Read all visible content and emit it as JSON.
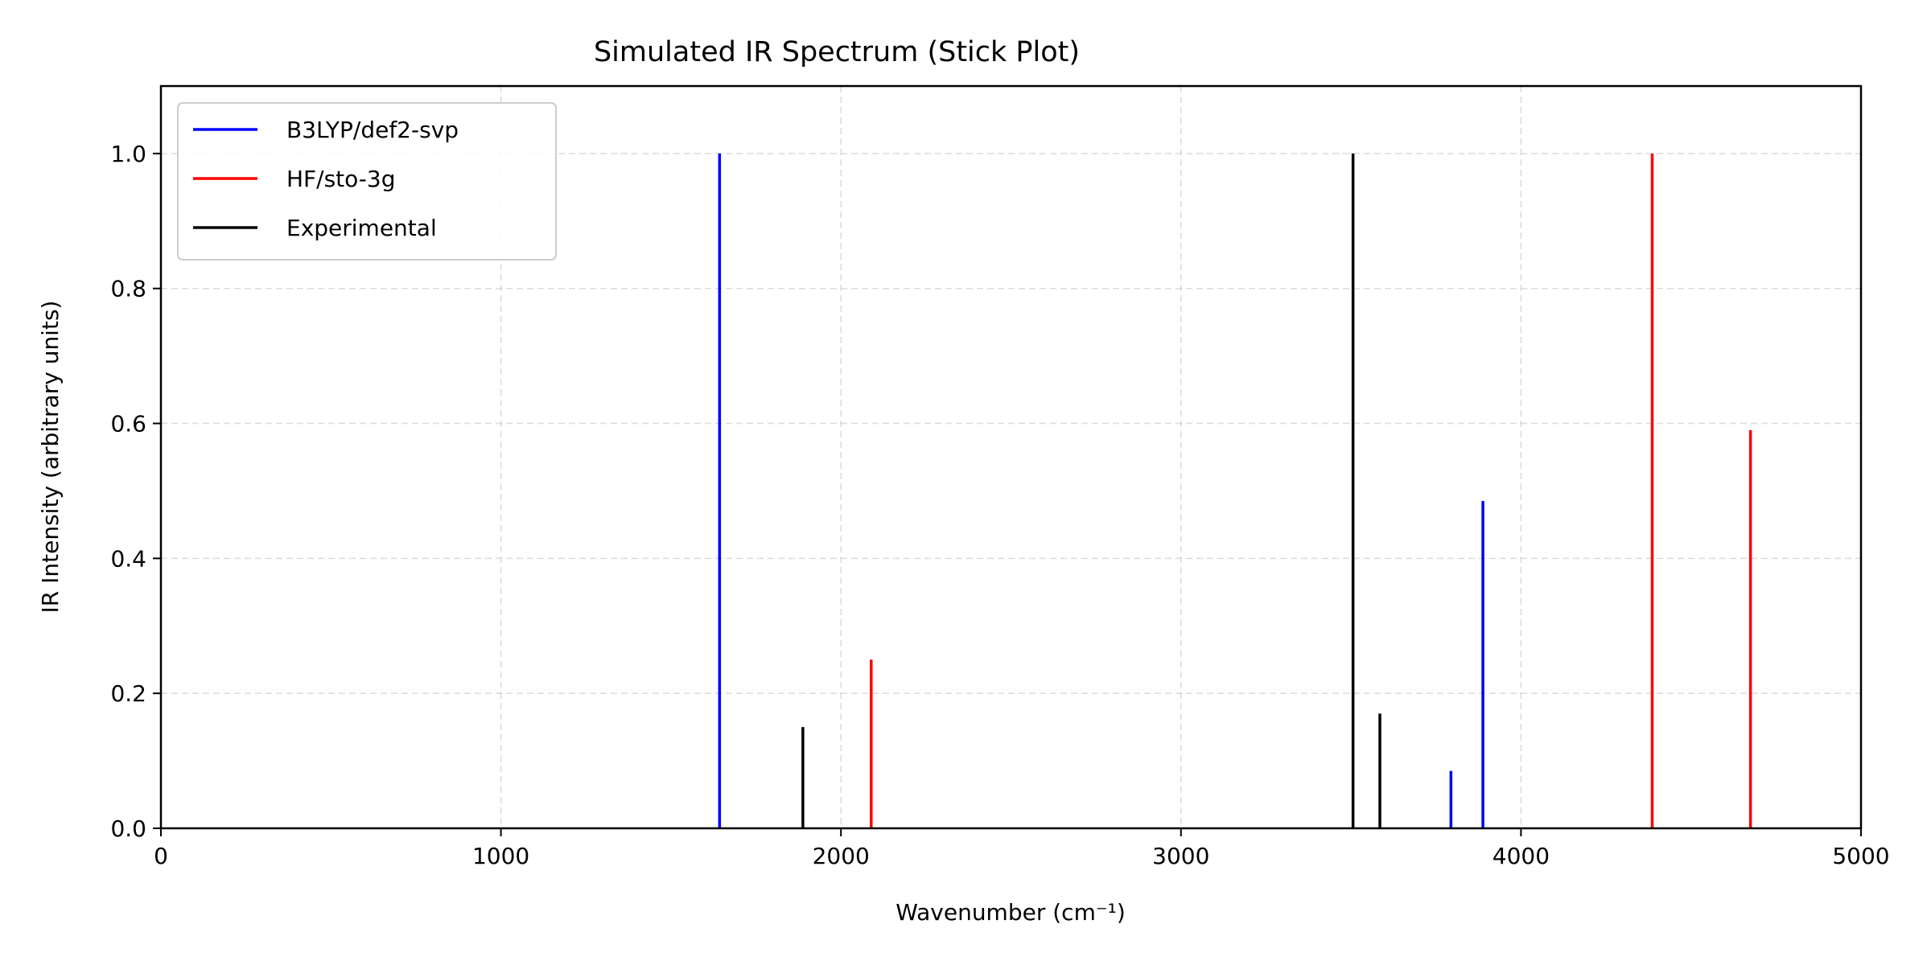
{
  "chart_data": {
    "type": "bar",
    "title": "Simulated IR Spectrum (Stick Plot)",
    "xlabel": "Wavenumber (cm⁻¹)",
    "ylabel": "IR Intensity (arbitrary units)",
    "xlim": [
      0,
      5000
    ],
    "ylim": [
      0,
      1.1
    ],
    "xticks": [
      "0",
      "1000",
      "2000",
      "3000",
      "4000",
      "5000"
    ],
    "xtick_values": [
      0,
      1000,
      2000,
      3000,
      4000,
      5000
    ],
    "yticks": [
      "0.0",
      "0.2",
      "0.4",
      "0.6",
      "0.8",
      "1.0"
    ],
    "ytick_values": [
      0,
      0.2,
      0.4,
      0.6,
      0.8,
      1.0
    ],
    "grid": true,
    "legend_position": "top-left",
    "series": [
      {
        "name": "B3LYP/def2-svp",
        "color": "#0000ff",
        "points": [
          {
            "x": 1643,
            "y": 1.0
          },
          {
            "x": 3794,
            "y": 0.085
          },
          {
            "x": 3888,
            "y": 0.485
          }
        ]
      },
      {
        "name": "HF/sto-3g",
        "color": "#ff0000",
        "points": [
          {
            "x": 2089,
            "y": 0.25
          },
          {
            "x": 4386,
            "y": 1.0
          },
          {
            "x": 4675,
            "y": 0.59
          }
        ]
      },
      {
        "name": "Experimental",
        "color": "#000000",
        "points": [
          {
            "x": 1888,
            "y": 0.15
          },
          {
            "x": 3506,
            "y": 1.0
          },
          {
            "x": 3585,
            "y": 0.17
          }
        ]
      }
    ]
  }
}
